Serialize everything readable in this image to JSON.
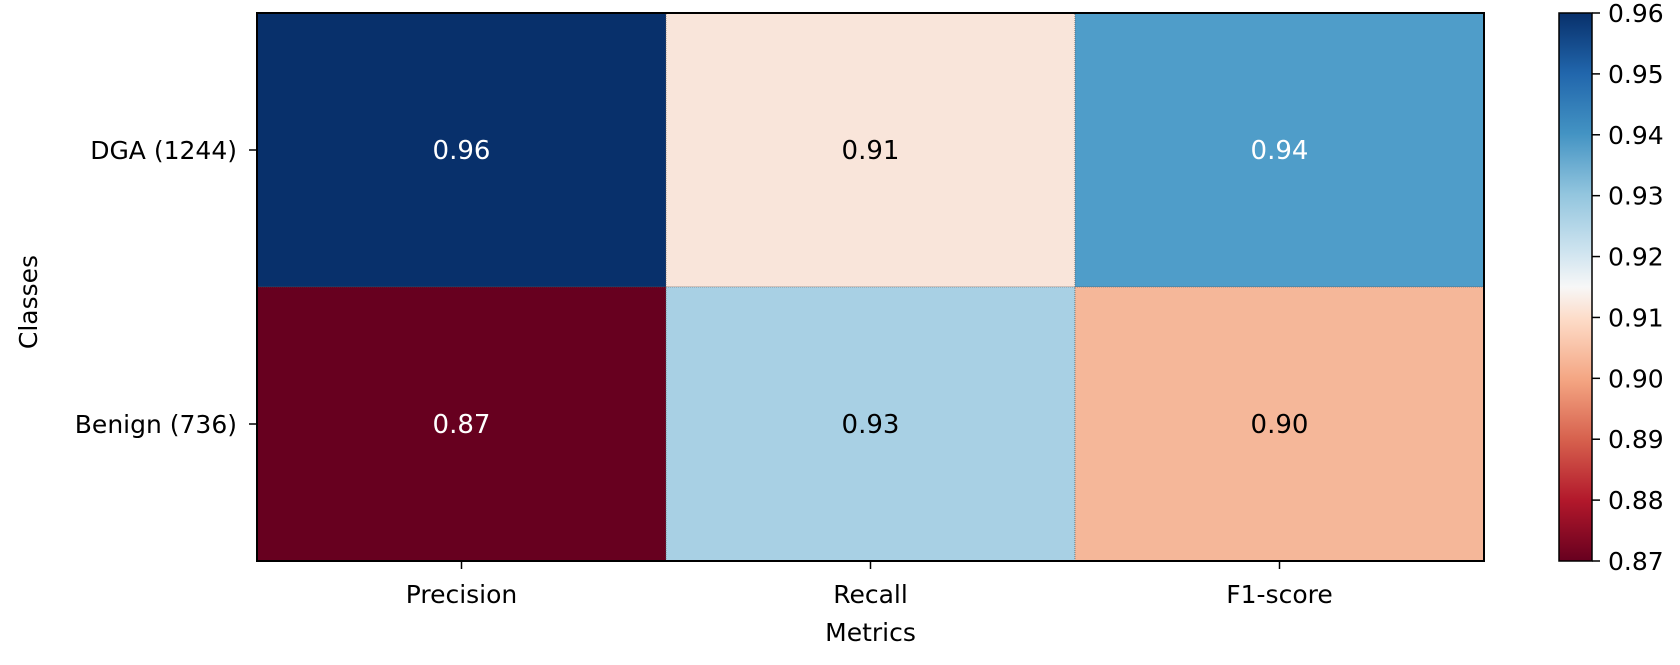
{
  "chart_data": {
    "type": "heatmap",
    "xlabel": "Metrics",
    "ylabel": "Classes",
    "x_categories": [
      "Precision",
      "Recall",
      "F1-score"
    ],
    "y_categories": [
      "DGA (1244)",
      "Benign (736)"
    ],
    "values": [
      [
        "0.96",
        "0.91",
        "0.94"
      ],
      [
        "0.87",
        "0.93",
        "0.90"
      ]
    ],
    "colorbar": {
      "colormap": "RdBu",
      "range": [
        0.87,
        0.96
      ],
      "ticks": [
        "0.87",
        "0.88",
        "0.89",
        "0.90",
        "0.91",
        "0.92",
        "0.93",
        "0.94",
        "0.95",
        "0.96"
      ]
    },
    "colors": {
      "0.96": "#08306b",
      "0.91": "#f9e5da",
      "0.94": "#4f9dc9",
      "0.87": "#67001f",
      "0.93": "#a8d0e4",
      "0.90": "#f5b799"
    },
    "text_colors": {
      "0.96": "#ffffff",
      "0.91": "#000000",
      "0.94": "#ffffff",
      "0.87": "#ffffff",
      "0.93": "#000000",
      "0.90": "#000000"
    }
  }
}
